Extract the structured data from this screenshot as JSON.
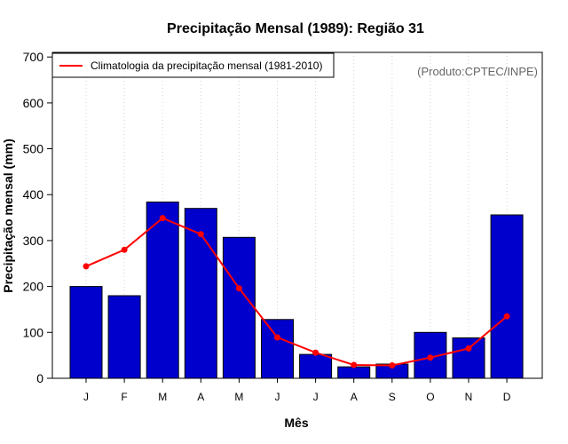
{
  "chart_data": {
    "type": "bar",
    "title": "Precipitação Mensal (1989): Região 31",
    "xlabel": "Mês",
    "ylabel": "Precipitação mensal (mm)",
    "ylim": [
      0,
      710
    ],
    "yticks": [
      0,
      100,
      200,
      300,
      400,
      500,
      600,
      700
    ],
    "categories": [
      "J",
      "F",
      "M",
      "A",
      "M",
      "J",
      "J",
      "A",
      "S",
      "O",
      "N",
      "D"
    ],
    "series": [
      {
        "name": "Precipitação mensal (1989)",
        "kind": "bar",
        "color": "#0000cd",
        "values": [
          200,
          180,
          384,
          370,
          307,
          128,
          52,
          25,
          31,
          100,
          88,
          356
        ]
      },
      {
        "name": "Climatologia da precipitação mensal (1981-2010)",
        "kind": "line",
        "color": "#ff0000",
        "values": [
          244,
          280,
          349,
          314,
          196,
          89,
          56,
          29,
          28,
          45,
          65,
          135
        ]
      }
    ],
    "legend": {
      "entries": [
        "Climatologia da precipitação mensal (1981-2010)"
      ],
      "placement": "top-left"
    },
    "credit": "(Produto:CPTEC/INPE)",
    "grid": "vertical dotted"
  }
}
